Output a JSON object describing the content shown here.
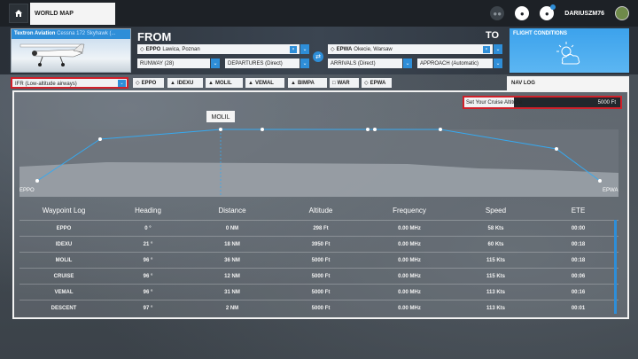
{
  "topbar": {
    "world_map_tab": "WORLD MAP",
    "user_name": "DARIUSZM76"
  },
  "aircraft": {
    "brand": "Textron Aviation",
    "model": "Cessna 172 Skyhawk (..."
  },
  "route": {
    "from_label": "FROM",
    "to_label": "TO",
    "from_code": "EPPO",
    "from_name": "Lawica, Poznan",
    "to_code": "EPWA",
    "to_name": "Okecie, Warsaw",
    "runway": "RUNWAY (28)",
    "departures": "DEPARTURES (Direct)",
    "arrivals": "ARRIVALS (Direct)",
    "approach": "APPROACH (Automatic)"
  },
  "conditions": {
    "title": "FLIGHT CONDITIONS"
  },
  "nav": {
    "flight_rule": "IFR (Low-altitude airways)",
    "chips": [
      {
        "icon": "◇",
        "label": "EPPO"
      },
      {
        "icon": "▲",
        "label": "IDEXU"
      },
      {
        "icon": "▲",
        "label": "MOLIL"
      },
      {
        "icon": "▲",
        "label": "VEMAL"
      },
      {
        "icon": "▲",
        "label": "BIMPA"
      },
      {
        "icon": "□",
        "label": "WAR"
      },
      {
        "icon": "◇",
        "label": "EPWA"
      }
    ],
    "navlog_tab": "NAV LOG"
  },
  "cruise": {
    "label": "Set Your Cruise Altitude",
    "value": "5000 Ft"
  },
  "profile": {
    "selected_label": "MOLIL",
    "start_label": "EPPO",
    "end_label": "EPWA"
  },
  "table": {
    "headers": [
      "Waypoint Log",
      "Heading",
      "Distance",
      "Altitude",
      "Frequency",
      "Speed",
      "ETE"
    ],
    "rows": [
      [
        "EPPO",
        "0 °",
        "0 NM",
        "298 Ft",
        "0.00 MHz",
        "58 Kts",
        "00:00"
      ],
      [
        "IDEXU",
        "21 °",
        "18 NM",
        "3950 Ft",
        "0.00 MHz",
        "60 Kts",
        "00:18"
      ],
      [
        "MOLIL",
        "96 °",
        "36 NM",
        "5000 Ft",
        "0.00 MHz",
        "115 Kts",
        "00:18"
      ],
      [
        "CRUISE",
        "96 °",
        "12 NM",
        "5000 Ft",
        "0.00 MHz",
        "115 Kts",
        "00:06"
      ],
      [
        "VEMAL",
        "96 °",
        "31 NM",
        "5000 Ft",
        "0.00 MHz",
        "113 Kts",
        "00:16"
      ],
      [
        "DESCENT",
        "97 °",
        "2 NM",
        "5000 Ft",
        "0.00 MHz",
        "113 Kts",
        "00:01"
      ]
    ]
  },
  "colors": {
    "accent": "#2e8ed8",
    "highlight": "#d0202a",
    "line": "#36a9f0"
  }
}
